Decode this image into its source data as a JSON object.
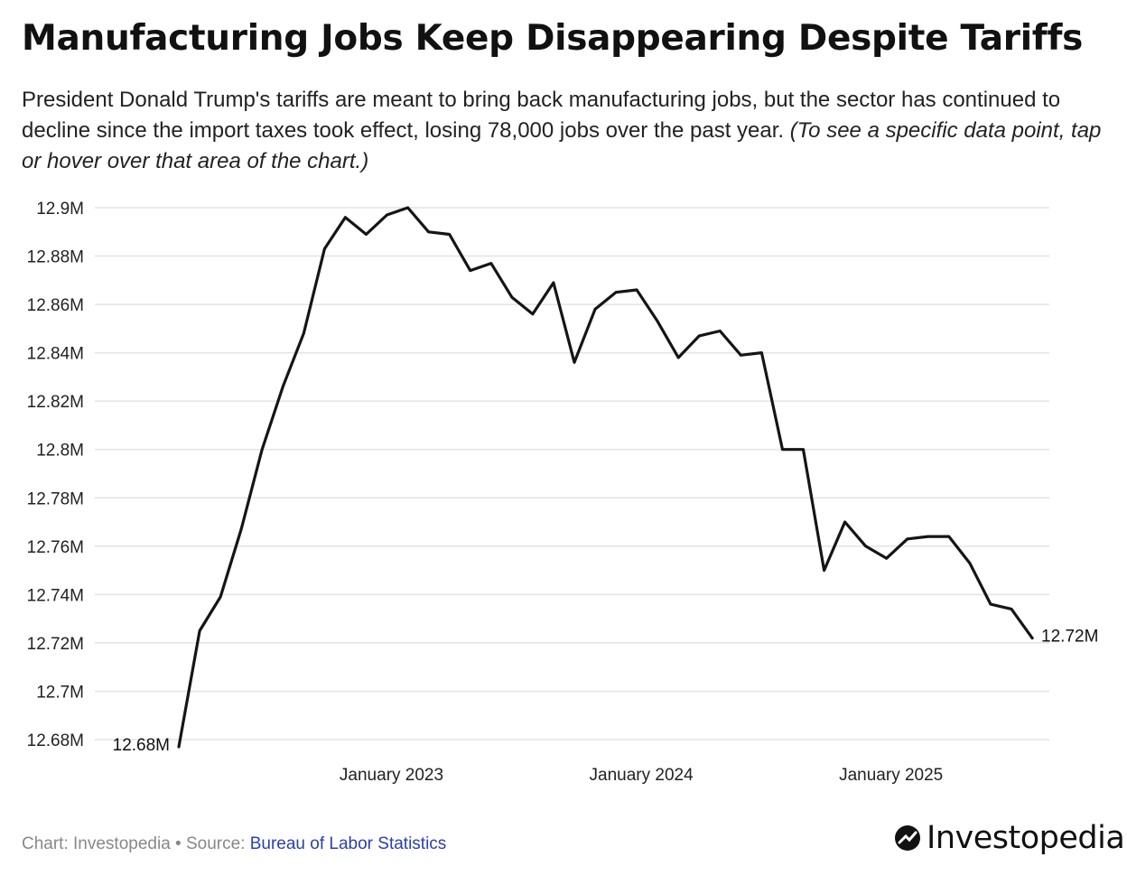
{
  "header": {
    "title": "Manufacturing Jobs Keep Disappearing Despite Tariffs",
    "subtitle": "President Donald Trump's tariffs are meant to bring back manufacturing jobs, but the sector has continued to decline since the import taxes took effect, losing 78,000 jobs over the past year.",
    "note": "(To see a specific data point, tap or hover over that area of the chart.)"
  },
  "footer": {
    "credit": "Chart: Investopedia • Source: ",
    "source_link": "Bureau of Labor Statistics",
    "logo_text": "Investopedia"
  },
  "chart_data": {
    "type": "line",
    "title": "Manufacturing Jobs Keep Disappearing Despite Tariffs",
    "xlabel": "",
    "ylabel": "",
    "ylim": [
      12.68,
      12.9
    ],
    "y_unit": "M",
    "y_ticks": [
      12.9,
      12.88,
      12.86,
      12.84,
      12.82,
      12.8,
      12.78,
      12.76,
      12.74,
      12.72,
      12.7,
      12.68
    ],
    "y_tick_labels": [
      "12.9M",
      "12.88M",
      "12.86M",
      "12.84M",
      "12.82M",
      "12.8M",
      "12.78M",
      "12.76M",
      "12.74M",
      "12.72M",
      "12.7M",
      "12.68M"
    ],
    "x_ticks": [
      "January 2023",
      "January 2024",
      "January 2025"
    ],
    "x": [
      "2022-03",
      "2022-04",
      "2022-05",
      "2022-06",
      "2022-07",
      "2022-08",
      "2022-09",
      "2022-10",
      "2022-11",
      "2022-12",
      "2023-01",
      "2023-02",
      "2023-03",
      "2023-04",
      "2023-05",
      "2023-06",
      "2023-07",
      "2023-08",
      "2023-09",
      "2023-10",
      "2023-11",
      "2023-12",
      "2024-01",
      "2024-02",
      "2024-03",
      "2024-04",
      "2024-05",
      "2024-06",
      "2024-07",
      "2024-08",
      "2024-09",
      "2024-10",
      "2024-11",
      "2024-12",
      "2025-01",
      "2025-02",
      "2025-03",
      "2025-04",
      "2025-05",
      "2025-06",
      "2025-07",
      "2025-08"
    ],
    "series": [
      {
        "values": [
          12.677,
          12.725,
          12.739,
          12.767,
          12.8,
          12.826,
          12.848,
          12.883,
          12.896,
          12.889,
          12.897,
          12.9,
          12.89,
          12.889,
          12.874,
          12.877,
          12.863,
          12.856,
          12.869,
          12.836,
          12.858,
          12.865,
          12.866,
          12.853,
          12.838,
          12.847,
          12.849,
          12.839,
          12.84,
          12.8,
          12.8,
          12.75,
          12.77,
          12.76,
          12.755,
          12.763,
          12.764,
          12.764,
          12.753,
          12.736,
          12.734,
          12.722
        ]
      }
    ],
    "start_label": "12.68M",
    "end_label": "12.72M",
    "grid": true
  }
}
